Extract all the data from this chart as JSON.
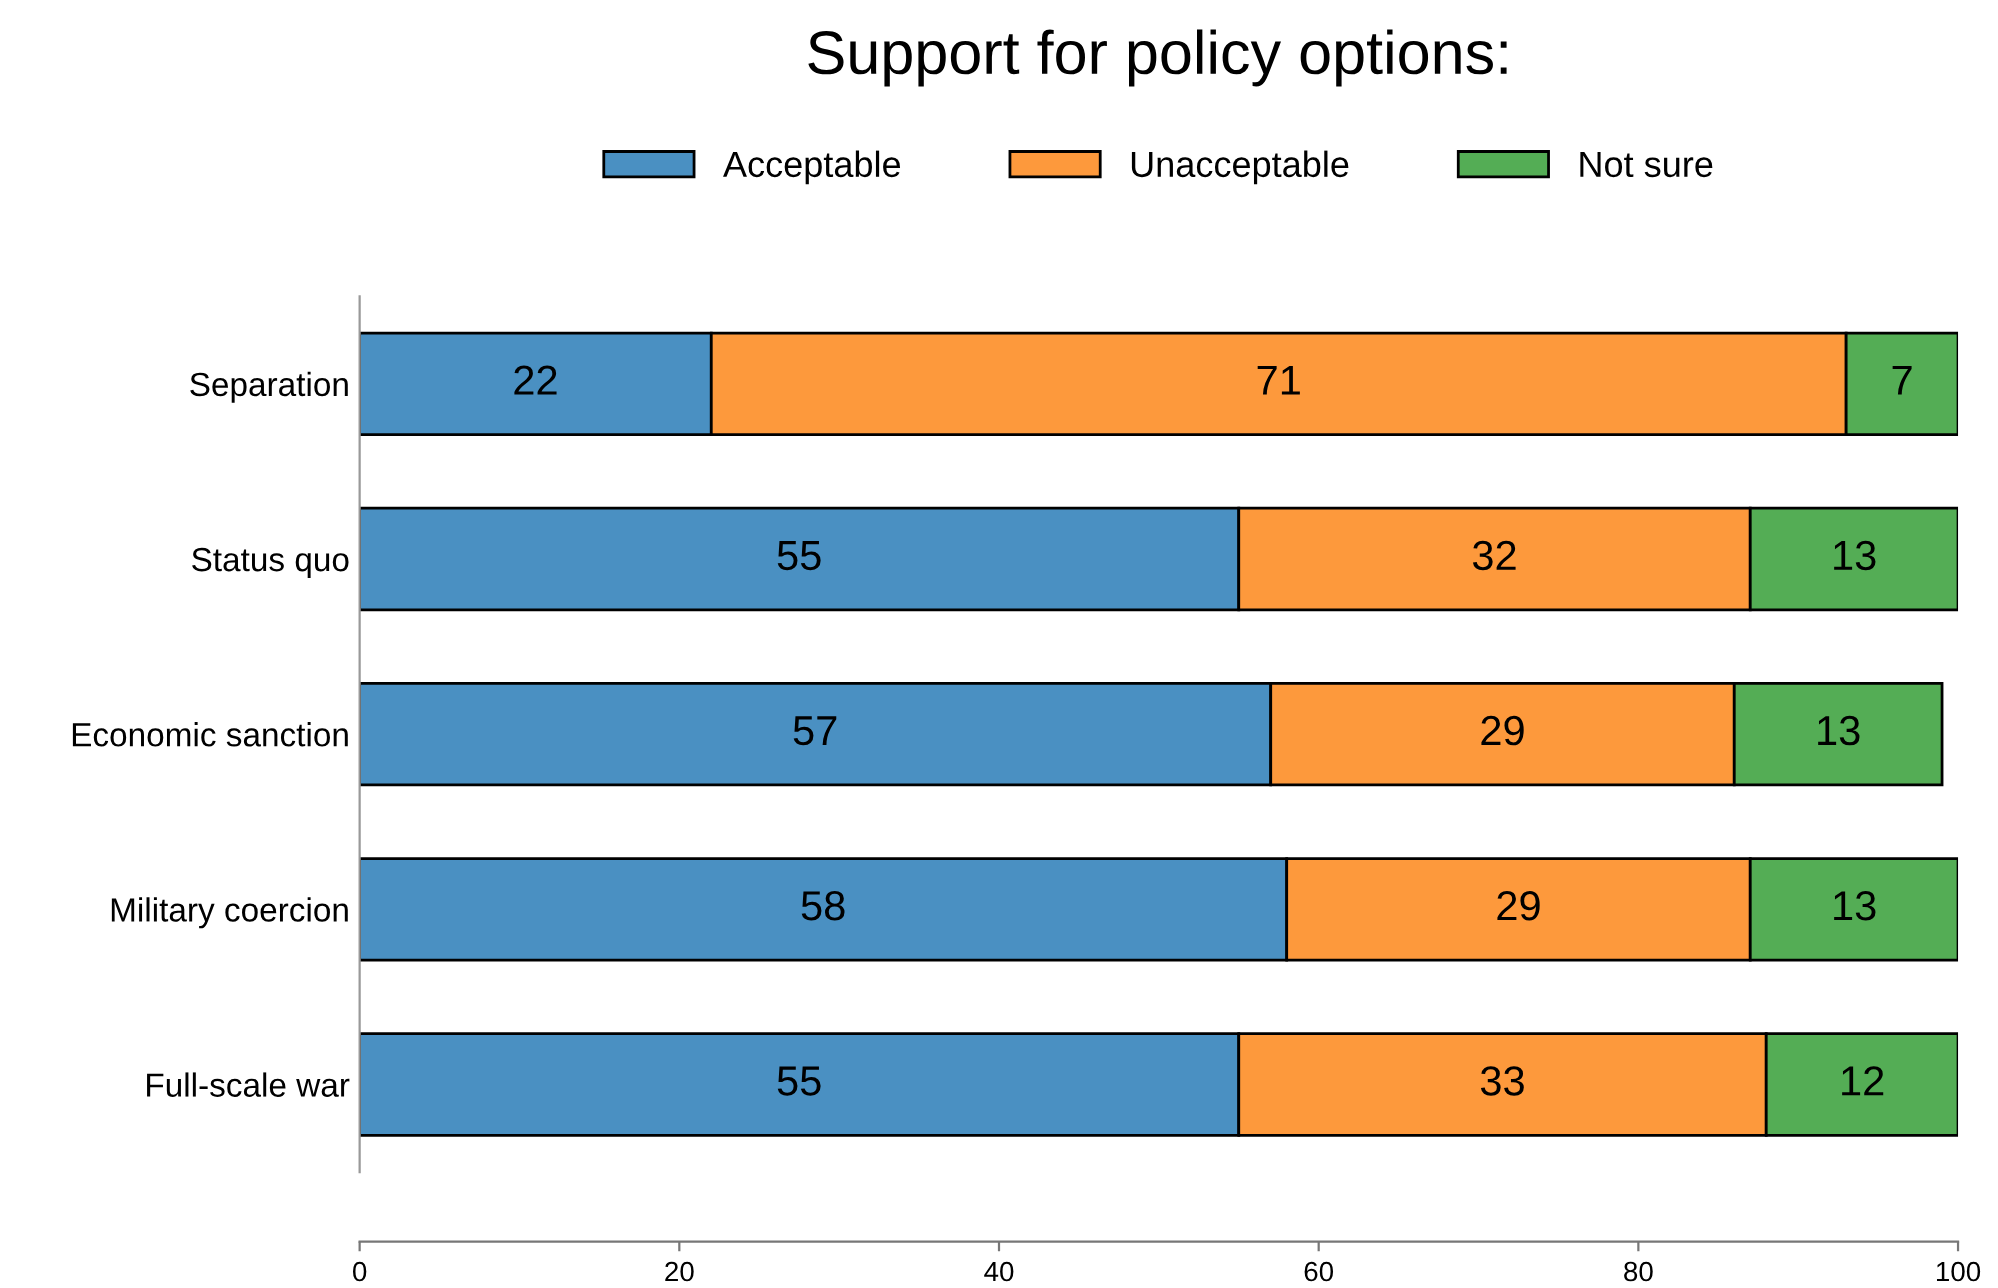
{
  "chart_data": {
    "type": "bar",
    "orientation": "horizontal",
    "stacked": true,
    "title": "Support for policy options:",
    "categories": [
      "Separation",
      "Status quo",
      "Economic sanction",
      "Military coercion",
      "Full-scale war"
    ],
    "series": [
      {
        "name": "Acceptable",
        "color": "#4a90c2",
        "values": [
          22,
          55,
          57,
          58,
          55
        ]
      },
      {
        "name": "Unacceptable",
        "color": "#fd993c",
        "values": [
          71,
          32,
          29,
          29,
          33
        ]
      },
      {
        "name": "Not sure",
        "color": "#54ad55",
        "values": [
          7,
          13,
          13,
          13,
          12
        ]
      }
    ],
    "xlim": [
      0,
      100
    ],
    "xticks": [
      0,
      20,
      40,
      60,
      80,
      100
    ],
    "data_labels": true,
    "legend": "top",
    "grid": false
  }
}
